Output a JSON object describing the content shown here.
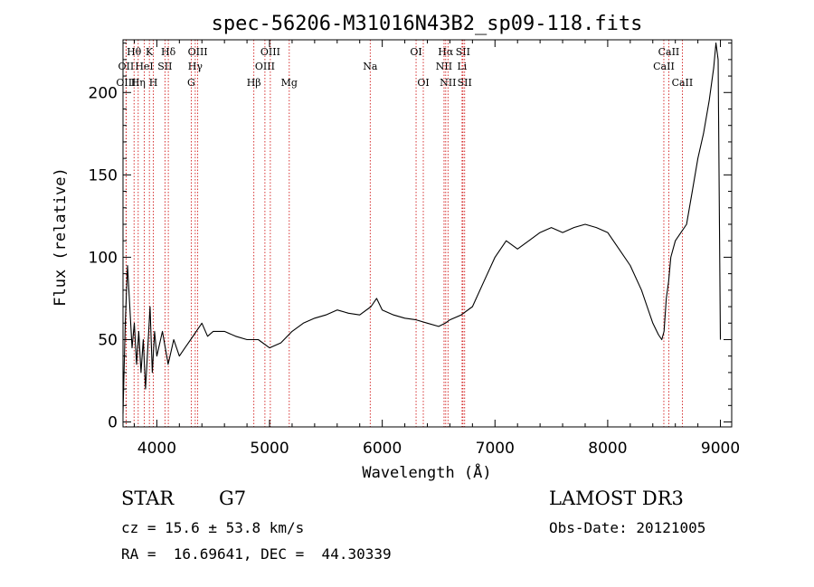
{
  "chart_data": {
    "type": "line",
    "title": "spec-56206-M31016N43B2_sp09-118.fits",
    "xlabel": "Wavelength (Å)",
    "ylabel": "Flux (relative)",
    "xlim": [
      3700,
      9100
    ],
    "ylim": [
      -3,
      232
    ],
    "x_ticks": [
      4000,
      5000,
      6000,
      7000,
      8000,
      9000
    ],
    "y_ticks": [
      0,
      50,
      100,
      150,
      200
    ],
    "series": [
      {
        "name": "flux",
        "x": [
          3700,
          3720,
          3740,
          3760,
          3780,
          3800,
          3820,
          3840,
          3860,
          3880,
          3900,
          3920,
          3940,
          3960,
          3980,
          4000,
          4050,
          4100,
          4150,
          4200,
          4250,
          4300,
          4350,
          4400,
          4450,
          4500,
          4600,
          4700,
          4800,
          4900,
          5000,
          5100,
          5200,
          5300,
          5400,
          5500,
          5600,
          5700,
          5800,
          5900,
          5950,
          6000,
          6100,
          6200,
          6300,
          6400,
          6500,
          6560,
          6600,
          6700,
          6800,
          6900,
          7000,
          7100,
          7200,
          7300,
          7400,
          7500,
          7600,
          7700,
          7800,
          7900,
          8000,
          8100,
          8200,
          8300,
          8350,
          8400,
          8450,
          8480,
          8500,
          8520,
          8540,
          8560,
          8600,
          8650,
          8700,
          8750,
          8800,
          8850,
          8900,
          8940,
          8960,
          8980,
          9000
        ],
        "y": [
          5,
          60,
          95,
          70,
          45,
          60,
          35,
          55,
          30,
          50,
          20,
          45,
          70,
          30,
          55,
          40,
          55,
          35,
          50,
          40,
          45,
          50,
          55,
          60,
          52,
          55,
          55,
          52,
          50,
          50,
          45,
          48,
          55,
          60,
          63,
          65,
          68,
          66,
          65,
          70,
          75,
          68,
          65,
          63,
          62,
          60,
          58,
          60,
          62,
          65,
          70,
          85,
          100,
          110,
          105,
          110,
          115,
          118,
          115,
          118,
          120,
          118,
          115,
          105,
          95,
          80,
          70,
          60,
          53,
          50,
          55,
          75,
          85,
          100,
          110,
          115,
          120,
          140,
          160,
          175,
          195,
          215,
          230,
          220,
          50
        ]
      }
    ],
    "line_markers": [
      {
        "label": "Hθ",
        "x": 3798,
        "row": 1
      },
      {
        "label": "OII",
        "x": 3727,
        "row": 2
      },
      {
        "label": "OIII",
        "x": 3727,
        "row": 3
      },
      {
        "label": "K",
        "x": 3934,
        "row": 1
      },
      {
        "label": "HeI",
        "x": 3889,
        "row": 2
      },
      {
        "label": "Hη",
        "x": 3835,
        "row": 3
      },
      {
        "label": "Hδ",
        "x": 4102,
        "row": 1
      },
      {
        "label": "SII",
        "x": 4072,
        "row": 2
      },
      {
        "label": "H",
        "x": 3969,
        "row": 3
      },
      {
        "label": "OIII",
        "x": 4363,
        "row": 1
      },
      {
        "label": "Hγ",
        "x": 4341,
        "row": 2
      },
      {
        "label": "G",
        "x": 4305,
        "row": 3
      },
      {
        "label": "OIII",
        "x": 5007,
        "row": 1
      },
      {
        "label": "OIII",
        "x": 4959,
        "row": 2
      },
      {
        "label": "Hβ",
        "x": 4861,
        "row": 3
      },
      {
        "label": "Mg",
        "x": 5175,
        "row": 3
      },
      {
        "label": "Na",
        "x": 5893,
        "row": 2
      },
      {
        "label": "OI",
        "x": 6300,
        "row": 1
      },
      {
        "label": "OI",
        "x": 6364,
        "row": 3
      },
      {
        "label": "Hα",
        "x": 6563,
        "row": 1
      },
      {
        "label": "NII",
        "x": 6548,
        "row": 2
      },
      {
        "label": "NII",
        "x": 6583,
        "row": 3
      },
      {
        "label": "SII",
        "x": 6716,
        "row": 1
      },
      {
        "label": "Li",
        "x": 6708,
        "row": 2
      },
      {
        "label": "SII",
        "x": 6731,
        "row": 3
      },
      {
        "label": "CaII",
        "x": 8542,
        "row": 1
      },
      {
        "label": "CaII",
        "x": 8498,
        "row": 2
      },
      {
        "label": "CaII",
        "x": 8662,
        "row": 3
      }
    ]
  },
  "footer": {
    "object_class": "STAR",
    "subclass": "G7",
    "survey": "LAMOST DR3",
    "cz": "cz = 15.6 ± 53.8 km/s",
    "obs_date": "Obs-Date: 20121005",
    "coords": "RA =  16.69641, DEC =  44.30339"
  }
}
